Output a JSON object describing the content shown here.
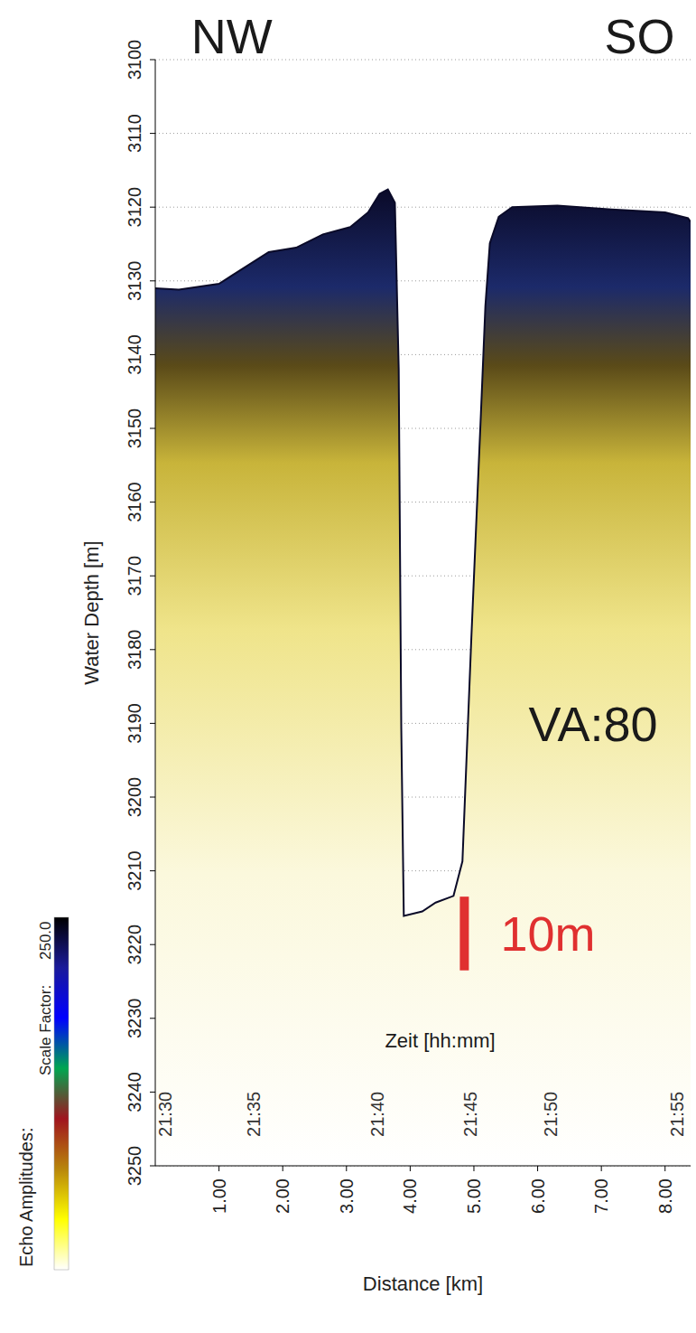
{
  "chart_data": {
    "type": "area",
    "x_label": "Distance [km]",
    "y_label": "Water Depth [m]",
    "x": [
      0,
      0.37,
      1.0,
      1.78,
      2.21,
      2.63,
      3.06,
      3.34,
      3.52,
      3.65,
      3.76,
      3.82,
      3.86,
      3.9,
      4.19,
      4.4,
      4.68,
      4.82,
      4.96,
      5.11,
      5.18,
      5.25,
      5.39,
      5.6,
      6.31,
      7.16,
      8.0,
      8.36,
      8.4
    ],
    "values": [
      3131.0,
      3131.2,
      3130.4,
      3126.1,
      3125.5,
      3123.7,
      3122.7,
      3120.7,
      3118.2,
      3117.6,
      3119.4,
      3141.9,
      3190.5,
      3216.1,
      3215.5,
      3214.3,
      3213.4,
      3208.7,
      3178.4,
      3148.0,
      3133.4,
      3124.9,
      3121.3,
      3120.0,
      3119.8,
      3120.3,
      3120.7,
      3121.5,
      3122.0
    ],
    "color": "#0a0a28",
    "xlim": [
      0,
      8.4
    ],
    "xticks": [
      {
        "value": 1,
        "label": "1.00"
      },
      {
        "value": 2,
        "label": "2.00"
      },
      {
        "value": 3,
        "label": "3.00"
      },
      {
        "value": 4,
        "label": "4.00"
      },
      {
        "value": 5,
        "label": "5.00"
      },
      {
        "value": 6,
        "label": "6.00"
      },
      {
        "value": 7,
        "label": "7.00"
      },
      {
        "value": 8,
        "label": "8.00"
      }
    ],
    "ylim": [
      3100,
      3250
    ],
    "yticks": [
      3100,
      3110,
      3120,
      3130,
      3140,
      3150,
      3160,
      3170,
      3180,
      3190,
      3200,
      3210,
      3220,
      3230,
      3240,
      3250
    ],
    "grid": true,
    "annotations": [
      {
        "text": "NW",
        "x": 1.2,
        "y": 3100
      },
      {
        "text": "SO",
        "x": 7.6,
        "y": 3100
      },
      {
        "text": "VA:80",
        "x": 6.87,
        "y": 3190
      },
      {
        "text": "Zeit [hh:mm]",
        "x": 4.47,
        "y": 3233
      }
    ],
    "time_labels": [
      {
        "x": 0.16,
        "y": 3243,
        "label": "21:30"
      },
      {
        "x": 1.54,
        "y": 3243,
        "label": "21:35"
      },
      {
        "x": 3.48,
        "y": 3243,
        "label": "21:40"
      },
      {
        "x": 4.94,
        "y": 3243,
        "label": "21:45"
      },
      {
        "x": 6.21,
        "y": 3243,
        "label": "21:50"
      },
      {
        "x": 8.19,
        "y": 3243,
        "label": "21:55"
      }
    ],
    "scale_bar": {
      "x": 4.85,
      "y_from": 3213.5,
      "y_to": 3223.5,
      "label": "10m",
      "color": "#e03030"
    },
    "colorbar": {
      "title": "Echo Amplitudes:",
      "label": "Scale Factor:",
      "value": {
        "value": 250,
        "label": "250.0"
      },
      "colors": [
        "#000000",
        "#1a1a9a",
        "#0000ff",
        "#00a651",
        "#a0141e",
        "#b8860b",
        "#ffff00",
        "#ffffff"
      ]
    }
  }
}
